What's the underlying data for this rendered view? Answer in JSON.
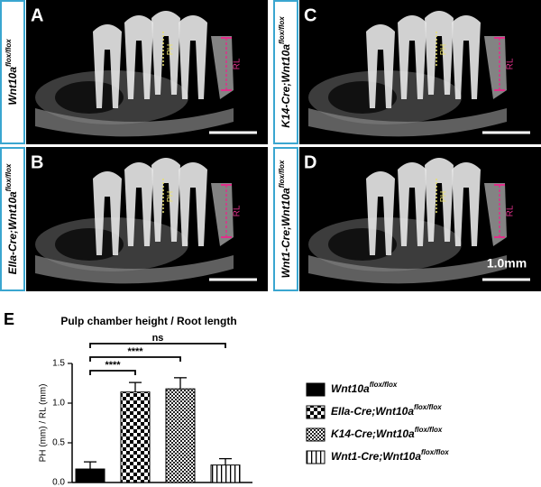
{
  "panels": [
    {
      "letter": "A",
      "genotype": "Wnt10a",
      "genotype_sup": "flox/flox",
      "ph": "PH",
      "rl": "RL"
    },
    {
      "letter": "B",
      "genotype": "EIIa-Cre;Wnt10a",
      "genotype_sup": "flox/flox",
      "ph": "PH",
      "rl": "RL"
    },
    {
      "letter": "C",
      "genotype": "K14-Cre;Wnt10a",
      "genotype_sup": "flox/flox",
      "ph": "PH",
      "rl": "RL"
    },
    {
      "letter": "D",
      "genotype": "Wnt1-Cre;Wnt10a",
      "genotype_sup": "flox/flox",
      "ph": "PH",
      "rl": "RL"
    }
  ],
  "scale_bar": "1.0mm",
  "chart_data": {
    "type": "bar",
    "panel_letter": "E",
    "title": "Pulp chamber height / Root length",
    "ylabel": "PH (mm) / RL (mm)",
    "ylim": [
      0,
      1.5
    ],
    "yticks": [
      {
        "value": 0,
        "label": "0.0"
      },
      {
        "value": 0.5,
        "label": "0.5"
      },
      {
        "value": 1,
        "label": "1.0"
      },
      {
        "value": 1.5,
        "label": "1.5"
      }
    ],
    "series": [
      {
        "name": "Wnt10a",
        "name_sup": "flox/flox",
        "pattern": "solid",
        "values": [
          0.17
        ],
        "errors": [
          0.09
        ]
      },
      {
        "name": "EIIa-Cre;Wnt10a",
        "name_sup": "flox/flox",
        "pattern": "checker",
        "values": [
          1.14
        ],
        "errors": [
          0.12
        ]
      },
      {
        "name": "K14-Cre;Wnt10a",
        "name_sup": "flox/flox",
        "pattern": "fine-checker",
        "values": [
          1.18
        ],
        "errors": [
          0.14
        ]
      },
      {
        "name": "Wnt1-Cre;Wnt10a",
        "name_sup": "flox/flox",
        "pattern": "stripes",
        "values": [
          0.22
        ],
        "errors": [
          0.08
        ]
      }
    ],
    "significance": [
      "****",
      "****",
      "ns"
    ]
  }
}
